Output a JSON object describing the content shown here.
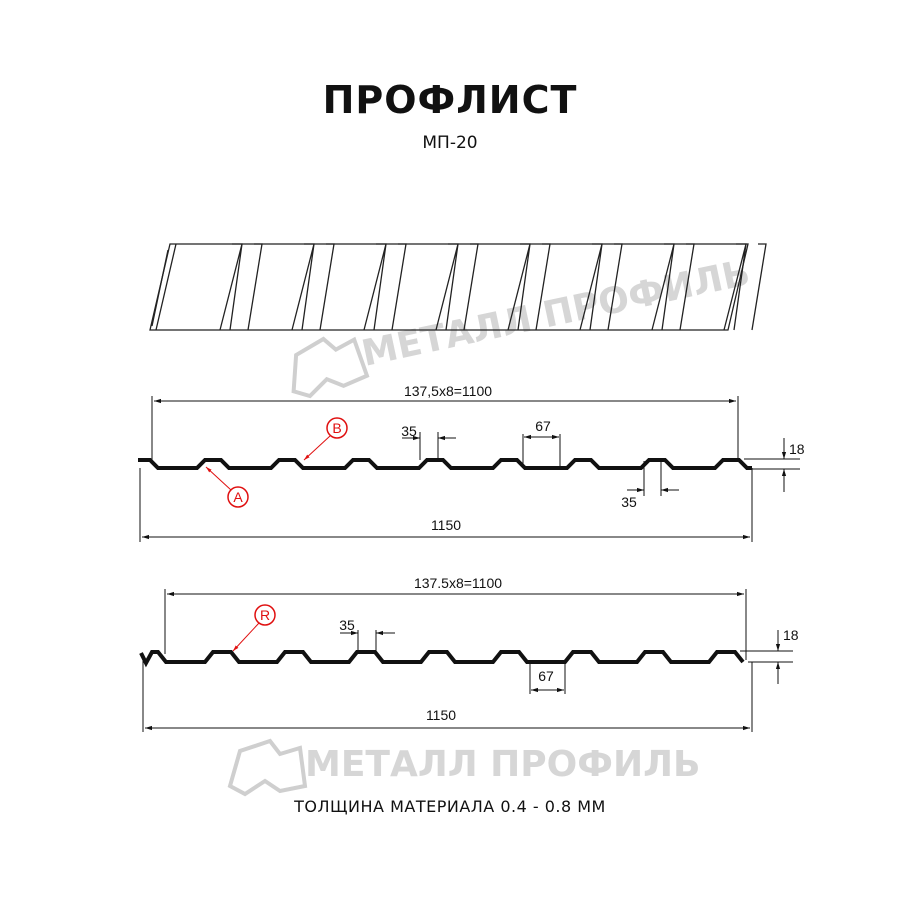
{
  "header": {
    "title": "ПРОФЛИСТ",
    "subtitle": "МП-20"
  },
  "watermark": {
    "text": "МЕТАЛЛ ПРОФИЛЬ"
  },
  "profile_a": {
    "pitch_label": "137,5x8=1100",
    "width_label": "1150",
    "crest_label": "35",
    "valley_label": "67",
    "valley_crest_label": "35",
    "height_label": "18",
    "callout_a": "A",
    "callout_b": "B"
  },
  "profile_b": {
    "pitch_label": "137.5x8=1100",
    "width_label": "1150",
    "crest_label": "35",
    "valley_label": "67",
    "height_label": "18",
    "callout_r": "R"
  },
  "footer": {
    "thickness": "ТОЛЩИНА МАТЕРИАЛА 0.4 - 0.8 ММ"
  },
  "colors": {
    "line": "#111111",
    "callout": "#e01010",
    "watermark": "#c9c9c9"
  }
}
